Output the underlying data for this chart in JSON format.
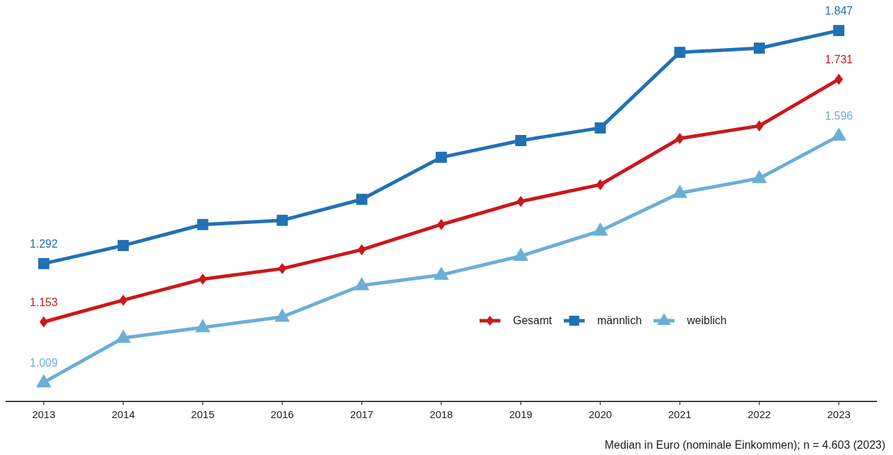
{
  "chart_data": {
    "type": "line",
    "categories": [
      "2013",
      "2014",
      "2015",
      "2016",
      "2017",
      "2018",
      "2019",
      "2020",
      "2021",
      "2022",
      "2023"
    ],
    "series": [
      {
        "name": "Gesamt",
        "color": "#cb181d",
        "marker": "diamond",
        "values": [
          1153,
          1205,
          1255,
          1280,
          1325,
          1385,
          1440,
          1480,
          1590,
          1620,
          1731
        ],
        "value_labels": [
          "1.153",
          null,
          null,
          null,
          null,
          null,
          null,
          null,
          null,
          null,
          "1.731"
        ]
      },
      {
        "name": "männlich",
        "color": "#2171b5",
        "marker": "square",
        "values": [
          1292,
          1335,
          1385,
          1395,
          1445,
          1545,
          1585,
          1615,
          1795,
          1805,
          1847
        ],
        "value_labels": [
          "1.292",
          null,
          null,
          null,
          null,
          null,
          null,
          null,
          null,
          null,
          "1.847"
        ]
      },
      {
        "name": "weiblich",
        "color": "#6baed6",
        "marker": "triangle",
        "values": [
          1009,
          1115,
          1140,
          1165,
          1240,
          1265,
          1310,
          1370,
          1460,
          1495,
          1596
        ],
        "value_labels": [
          "1.009",
          null,
          null,
          null,
          null,
          null,
          null,
          null,
          null,
          null,
          "1.596"
        ]
      }
    ],
    "tick_labels": "x",
    "legend": "bottom right",
    "annotations": [
      "Median in Euro (nominale Einkommen); n = 4.603 (2023)"
    ]
  }
}
